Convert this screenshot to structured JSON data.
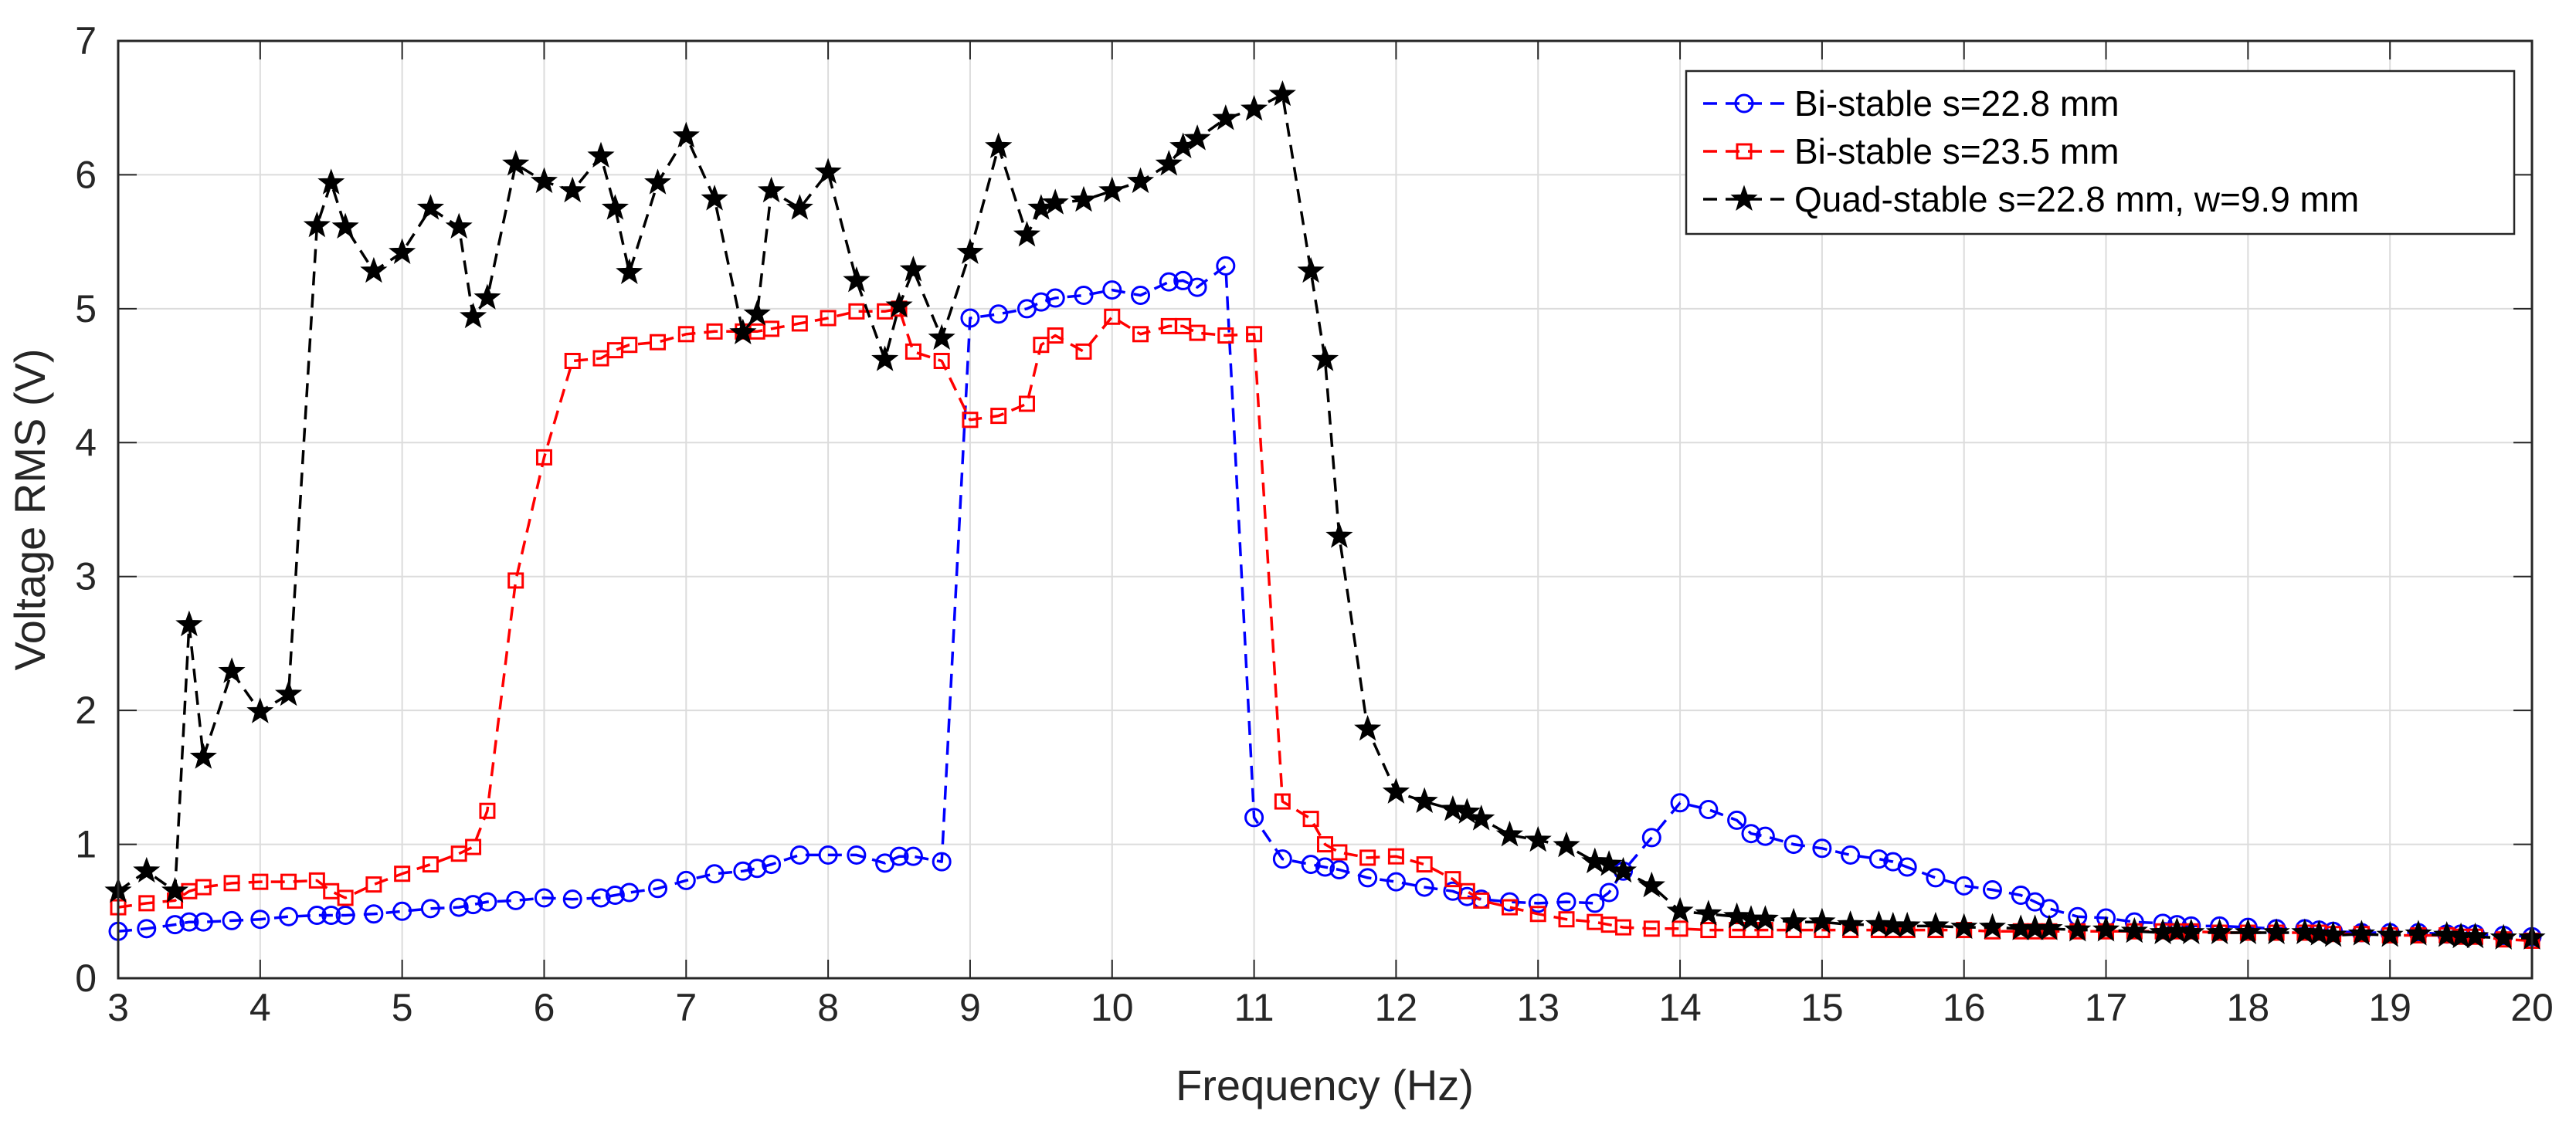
{
  "chart_data": {
    "type": "line",
    "title": "",
    "xlabel": "Frequency (Hz)",
    "ylabel": "Voltage RMS (V)",
    "xlim": [
      3,
      20
    ],
    "ylim": [
      0,
      7
    ],
    "xticks": [
      3,
      4,
      5,
      6,
      7,
      8,
      9,
      10,
      11,
      12,
      13,
      14,
      15,
      16,
      17,
      18,
      19,
      20
    ],
    "yticks": [
      0,
      1,
      2,
      3,
      4,
      5,
      6,
      7
    ],
    "xtick_labels": [
      "3",
      "4",
      "5",
      "6",
      "7",
      "8",
      "9",
      "10",
      "11",
      "12",
      "13",
      "14",
      "15",
      "16",
      "17",
      "18",
      "19",
      "20"
    ],
    "ytick_labels": [
      "0",
      "1",
      "2",
      "3",
      "4",
      "5",
      "6",
      "7"
    ],
    "grid": true,
    "legend_position": "top-right",
    "series": [
      {
        "name": "Bi-stable s=22.8 mm",
        "color": "#0000ff",
        "marker": "circle",
        "line_style": "dashed",
        "x": [
          3.0,
          3.2,
          3.4,
          3.5,
          3.6,
          3.8,
          4.0,
          4.2,
          4.4,
          4.5,
          4.6,
          4.8,
          5.0,
          5.2,
          5.4,
          5.5,
          5.6,
          5.8,
          6.0,
          6.2,
          6.4,
          6.5,
          6.6,
          6.8,
          7.0,
          7.2,
          7.4,
          7.5,
          7.6,
          7.8,
          8.0,
          8.2,
          8.4,
          8.5,
          8.6,
          8.8,
          9.0,
          9.2,
          9.4,
          9.5,
          9.6,
          9.8,
          10.0,
          10.2,
          10.4,
          10.5,
          10.6,
          10.8,
          11.0,
          11.2,
          11.4,
          11.5,
          11.6,
          11.8,
          12.0,
          12.2,
          12.4,
          12.5,
          12.6,
          12.8,
          13.0,
          13.2,
          13.4,
          13.5,
          13.6,
          13.8,
          14.0,
          14.2,
          14.4,
          14.5,
          14.6,
          14.8,
          15.0,
          15.2,
          15.4,
          15.5,
          15.6,
          15.8,
          16.0,
          16.2,
          16.4,
          16.5,
          16.6,
          16.8,
          17.0,
          17.2,
          17.4,
          17.5,
          17.6,
          17.8,
          18.0,
          18.2,
          18.4,
          18.5,
          18.6,
          18.8,
          19.0,
          19.2,
          19.4,
          19.5,
          19.6,
          19.8,
          20.0
        ],
        "y": [
          0.35,
          0.37,
          0.4,
          0.42,
          0.42,
          0.43,
          0.44,
          0.46,
          0.47,
          0.47,
          0.47,
          0.48,
          0.5,
          0.52,
          0.53,
          0.55,
          0.57,
          0.58,
          0.6,
          0.59,
          0.6,
          0.62,
          0.64,
          0.67,
          0.73,
          0.78,
          0.8,
          0.82,
          0.85,
          0.92,
          0.92,
          0.92,
          0.86,
          0.91,
          0.91,
          0.87,
          4.93,
          4.96,
          5.0,
          5.05,
          5.08,
          5.1,
          5.14,
          5.1,
          5.2,
          5.21,
          5.16,
          5.32,
          1.2,
          0.89,
          0.85,
          0.83,
          0.81,
          0.75,
          0.72,
          0.68,
          0.65,
          0.61,
          0.59,
          0.57,
          0.56,
          0.57,
          0.56,
          0.64,
          0.8,
          1.05,
          1.31,
          1.26,
          1.18,
          1.08,
          1.06,
          1.0,
          0.97,
          0.92,
          0.89,
          0.87,
          0.83,
          0.75,
          0.69,
          0.66,
          0.62,
          0.57,
          0.52,
          0.46,
          0.45,
          0.42,
          0.41,
          0.4,
          0.39,
          0.39,
          0.38,
          0.37,
          0.37,
          0.36,
          0.35,
          0.34,
          0.34,
          0.34,
          0.33,
          0.33,
          0.33,
          0.32,
          0.31
        ]
      },
      {
        "name": "Bi-stable s=23.5 mm",
        "color": "#ff0000",
        "marker": "square",
        "line_style": "dashed",
        "x": [
          3.0,
          3.2,
          3.4,
          3.5,
          3.6,
          3.8,
          4.0,
          4.2,
          4.4,
          4.5,
          4.6,
          4.8,
          5.0,
          5.2,
          5.4,
          5.5,
          5.6,
          5.8,
          6.0,
          6.2,
          6.4,
          6.5,
          6.6,
          6.8,
          7.0,
          7.2,
          7.4,
          7.5,
          7.6,
          7.8,
          8.0,
          8.2,
          8.4,
          8.5,
          8.6,
          8.8,
          9.0,
          9.2,
          9.4,
          9.5,
          9.6,
          9.8,
          10.0,
          10.2,
          10.4,
          10.5,
          10.6,
          10.8,
          11.0,
          11.2,
          11.4,
          11.5,
          11.6,
          11.8,
          12.0,
          12.2,
          12.4,
          12.5,
          12.6,
          12.8,
          13.0,
          13.2,
          13.4,
          13.5,
          13.6,
          13.8,
          14.0,
          14.2,
          14.4,
          14.5,
          14.6,
          14.8,
          15.0,
          15.2,
          15.4,
          15.5,
          15.6,
          15.8,
          16.0,
          16.2,
          16.4,
          16.5,
          16.6,
          16.8,
          17.0,
          17.2,
          17.4,
          17.5,
          17.6,
          17.8,
          18.0,
          18.2,
          18.4,
          18.5,
          18.6,
          18.8,
          19.0,
          19.2,
          19.4,
          19.5,
          19.6,
          19.8,
          20.0
        ],
        "y": [
          0.53,
          0.56,
          0.58,
          0.65,
          0.68,
          0.71,
          0.72,
          0.72,
          0.73,
          0.65,
          0.6,
          0.7,
          0.78,
          0.85,
          0.93,
          0.98,
          1.25,
          2.97,
          3.89,
          4.61,
          4.63,
          4.69,
          4.73,
          4.75,
          4.81,
          4.83,
          4.83,
          4.83,
          4.85,
          4.89,
          4.93,
          4.98,
          4.98,
          5.0,
          4.68,
          4.61,
          4.17,
          4.2,
          4.29,
          4.73,
          4.8,
          4.68,
          4.94,
          4.81,
          4.87,
          4.87,
          4.82,
          4.8,
          4.81,
          1.32,
          1.19,
          1.0,
          0.94,
          0.9,
          0.91,
          0.85,
          0.74,
          0.65,
          0.58,
          0.53,
          0.48,
          0.44,
          0.42,
          0.4,
          0.38,
          0.37,
          0.37,
          0.36,
          0.36,
          0.36,
          0.36,
          0.36,
          0.36,
          0.36,
          0.36,
          0.36,
          0.36,
          0.36,
          0.36,
          0.35,
          0.35,
          0.35,
          0.35,
          0.35,
          0.35,
          0.35,
          0.35,
          0.35,
          0.35,
          0.34,
          0.34,
          0.34,
          0.34,
          0.34,
          0.33,
          0.33,
          0.32,
          0.32,
          0.32,
          0.31,
          0.31,
          0.29,
          0.28
        ]
      },
      {
        "name": "Quad-stable s=22.8 mm, w=9.9 mm",
        "color": "#000000",
        "marker": "star",
        "line_style": "dashed",
        "x": [
          3.0,
          3.2,
          3.4,
          3.5,
          3.6,
          3.8,
          4.0,
          4.2,
          4.4,
          4.5,
          4.6,
          4.8,
          5.0,
          5.2,
          5.4,
          5.5,
          5.6,
          5.8,
          6.0,
          6.2,
          6.4,
          6.5,
          6.6,
          6.8,
          7.0,
          7.2,
          7.4,
          7.5,
          7.6,
          7.8,
          8.0,
          8.2,
          8.4,
          8.5,
          8.6,
          8.8,
          9.0,
          9.2,
          9.4,
          9.5,
          9.6,
          9.8,
          10.0,
          10.2,
          10.4,
          10.5,
          10.6,
          10.8,
          11.0,
          11.2,
          11.4,
          11.5,
          11.6,
          11.8,
          12.0,
          12.2,
          12.4,
          12.5,
          12.6,
          12.8,
          13.0,
          13.2,
          13.4,
          13.5,
          13.6,
          13.8,
          14.0,
          14.2,
          14.4,
          14.5,
          14.6,
          14.8,
          15.0,
          15.2,
          15.4,
          15.5,
          15.6,
          15.8,
          16.0,
          16.2,
          16.4,
          16.5,
          16.6,
          16.8,
          17.0,
          17.2,
          17.4,
          17.5,
          17.6,
          17.8,
          18.0,
          18.2,
          18.4,
          18.5,
          18.6,
          18.8,
          19.0,
          19.2,
          19.4,
          19.5,
          19.6,
          19.8,
          20.0
        ],
        "y": [
          0.65,
          0.8,
          0.65,
          2.64,
          1.65,
          2.29,
          1.99,
          2.12,
          5.62,
          5.94,
          5.61,
          5.28,
          5.42,
          5.75,
          5.61,
          4.94,
          5.08,
          6.08,
          5.95,
          5.88,
          6.14,
          5.75,
          5.27,
          5.94,
          6.29,
          5.82,
          4.82,
          4.96,
          5.88,
          5.75,
          6.02,
          5.21,
          4.62,
          5.02,
          5.29,
          4.78,
          5.42,
          6.21,
          5.55,
          5.75,
          5.79,
          5.81,
          5.88,
          5.95,
          6.08,
          6.21,
          6.27,
          6.42,
          6.49,
          6.6,
          5.28,
          4.62,
          3.3,
          1.86,
          1.39,
          1.32,
          1.26,
          1.24,
          1.19,
          1.07,
          1.03,
          0.99,
          0.87,
          0.85,
          0.8,
          0.69,
          0.5,
          0.48,
          0.46,
          0.44,
          0.44,
          0.42,
          0.42,
          0.4,
          0.4,
          0.39,
          0.39,
          0.39,
          0.38,
          0.38,
          0.37,
          0.37,
          0.37,
          0.36,
          0.36,
          0.35,
          0.34,
          0.35,
          0.34,
          0.34,
          0.34,
          0.34,
          0.34,
          0.33,
          0.32,
          0.33,
          0.32,
          0.33,
          0.32,
          0.31,
          0.31,
          0.3,
          0.3
        ]
      }
    ]
  }
}
